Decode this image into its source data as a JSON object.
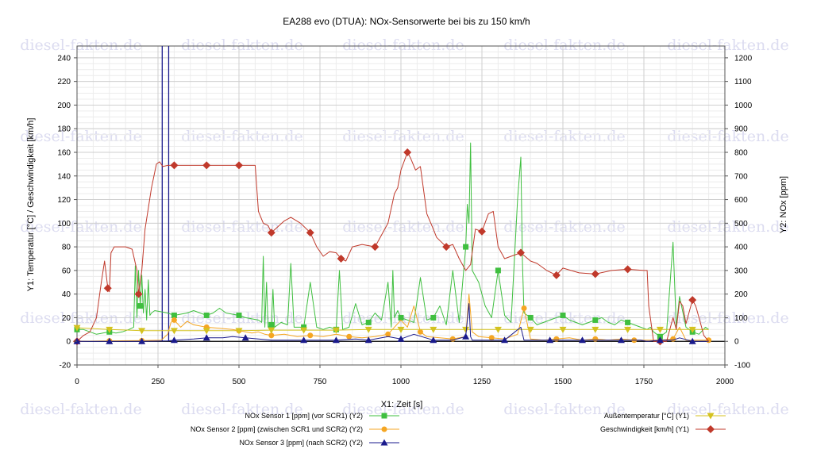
{
  "chart_data": {
    "type": "line",
    "title": "EA288 evo (DTUA): NOx-Sensorwerte bei bis zu 150 km/h",
    "xlabel": "X1: Zeit [s]",
    "ylabel_left": "Y1: Temperatur [°C] / Geschwindigkeit [km/h]",
    "ylabel_right": "Y2: NOx [ppm]",
    "xlim": [
      0,
      2000
    ],
    "ylim_left": [
      -20,
      250
    ],
    "ylim_right": [
      -100,
      1250
    ],
    "x_ticks": [
      "0",
      "250",
      "500",
      "750",
      "1000",
      "1250",
      "1500",
      "1750",
      "2000"
    ],
    "y_left_ticks": [
      "-20",
      "0",
      "20",
      "40",
      "60",
      "80",
      "100",
      "120",
      "140",
      "160",
      "180",
      "200",
      "220",
      "240"
    ],
    "y_right_ticks": [
      "-100",
      "0",
      "100",
      "200",
      "300",
      "400",
      "500",
      "600",
      "700",
      "800",
      "900",
      "1000",
      "1100",
      "1200"
    ],
    "grid": true,
    "legend_position": "bottom",
    "watermark": "diesel-fakten.de",
    "vertical_markers": [
      263,
      283
    ],
    "series": [
      {
        "name": "NOx Sensor 1 [ppm] (vor SCR1) (Y2)",
        "axis": "right",
        "color": "#3fbf3f",
        "marker": "square",
        "x": [
          0,
          20,
          40,
          60,
          80,
          100,
          120,
          140,
          160,
          175,
          180,
          185,
          190,
          195,
          200,
          205,
          210,
          215,
          220,
          225,
          230,
          240,
          260,
          280,
          300,
          320,
          340,
          360,
          380,
          400,
          420,
          440,
          460,
          480,
          500,
          520,
          540,
          560,
          570,
          575,
          580,
          585,
          590,
          600,
          605,
          610,
          630,
          650,
          660,
          670,
          700,
          720,
          740,
          760,
          780,
          800,
          810,
          820,
          840,
          860,
          880,
          900,
          920,
          940,
          960,
          970,
          975,
          980,
          990,
          1000,
          1020,
          1040,
          1060,
          1080,
          1100,
          1120,
          1140,
          1160,
          1180,
          1200,
          1205,
          1210,
          1215,
          1220,
          1240,
          1260,
          1280,
          1300,
          1320,
          1340,
          1360,
          1370,
          1375,
          1380,
          1400,
          1420,
          1440,
          1460,
          1480,
          1500,
          1520,
          1540,
          1560,
          1580,
          1600,
          1620,
          1640,
          1660,
          1680,
          1700,
          1720,
          1740,
          1760,
          1770,
          1780,
          1800,
          1820,
          1840,
          1850,
          1860,
          1880,
          1900,
          1920,
          1940,
          1950
        ],
        "y": [
          50,
          50,
          40,
          30,
          35,
          40,
          35,
          40,
          50,
          60,
          320,
          100,
          300,
          150,
          280,
          120,
          220,
          90,
          260,
          110,
          120,
          130,
          125,
          120,
          110,
          115,
          120,
          130,
          120,
          110,
          120,
          140,
          120,
          115,
          110,
          100,
          95,
          90,
          80,
          360,
          60,
          250,
          60,
          70,
          220,
          60,
          80,
          70,
          330,
          60,
          60,
          250,
          60,
          50,
          60,
          50,
          300,
          50,
          60,
          160,
          70,
          80,
          120,
          90,
          250,
          60,
          300,
          100,
          130,
          100,
          90,
          80,
          270,
          90,
          100,
          150,
          70,
          300,
          80,
          400,
          580,
          500,
          840,
          300,
          250,
          150,
          100,
          300,
          110,
          80,
          600,
          780,
          340,
          120,
          100,
          70,
          80,
          90,
          100,
          110,
          90,
          80,
          70,
          80,
          90,
          100,
          80,
          70,
          90,
          80,
          70,
          60,
          50,
          60,
          40,
          20,
          40,
          420,
          60,
          190,
          60,
          40,
          30,
          60,
          50
        ]
      },
      {
        "name": "NOx Sensor 2 [ppm] (zwischen SCR1 und SCR2) (Y2)",
        "axis": "right",
        "color": "#f5a623",
        "marker": "circle",
        "x": [
          0,
          100,
          200,
          260,
          280,
          290,
          300,
          320,
          340,
          360,
          380,
          400,
          440,
          480,
          500,
          520,
          540,
          560,
          580,
          600,
          640,
          680,
          720,
          760,
          800,
          840,
          880,
          920,
          960,
          1000,
          1020,
          1040,
          1060,
          1080,
          1120,
          1160,
          1200,
          1210,
          1220,
          1240,
          1280,
          1320,
          1360,
          1380,
          1400,
          1440,
          1480,
          1520,
          1560,
          1600,
          1640,
          1680,
          1720,
          1760,
          1800,
          1840,
          1860,
          1880,
          1920,
          1950
        ],
        "y": [
          0,
          2,
          3,
          5,
          30,
          80,
          90,
          60,
          85,
          70,
          65,
          60,
          55,
          50,
          45,
          40,
          35,
          40,
          30,
          25,
          30,
          20,
          25,
          20,
          30,
          20,
          15,
          20,
          30,
          90,
          60,
          150,
          40,
          20,
          15,
          10,
          20,
          200,
          40,
          20,
          15,
          10,
          30,
          140,
          10,
          5,
          10,
          15,
          5,
          10,
          5,
          10,
          5,
          5,
          5,
          10,
          60,
          5,
          5,
          5
        ]
      },
      {
        "name": "NOx Sensor 3 [ppm] (nach SCR2) (Y2)",
        "axis": "right",
        "color": "#1a1a8c",
        "marker": "triangle",
        "x": [
          0,
          100,
          200,
          280,
          300,
          360,
          400,
          450,
          480,
          520,
          560,
          600,
          700,
          800,
          860,
          900,
          960,
          1000,
          1040,
          1100,
          1160,
          1200,
          1210,
          1215,
          1220,
          1260,
          1320,
          1370,
          1380,
          1400,
          1460,
          1520,
          1560,
          1600,
          1680,
          1740,
          1760,
          1800,
          1840,
          1860,
          1900,
          1950
        ],
        "y": [
          0,
          0,
          0,
          2,
          5,
          10,
          15,
          15,
          20,
          15,
          10,
          5,
          5,
          5,
          10,
          5,
          20,
          10,
          30,
          5,
          5,
          20,
          160,
          20,
          5,
          5,
          5,
          60,
          5,
          5,
          5,
          5,
          5,
          5,
          5,
          5,
          0,
          5,
          5,
          15,
          0,
          0
        ]
      },
      {
        "name": "Außentemperatur [°C] (Y1)",
        "axis": "left",
        "color": "#d4c21f",
        "marker": "triangle-down",
        "x": [
          0,
          100,
          200,
          300,
          400,
          500,
          600,
          700,
          800,
          900,
          1000,
          1100,
          1200,
          1300,
          1400,
          1500,
          1600,
          1700,
          1800,
          1900,
          1950
        ],
        "y": [
          11.5,
          10,
          9,
          9,
          9,
          9,
          9.5,
          9.5,
          9.5,
          10,
          10,
          10,
          10,
          10,
          10,
          10,
          10,
          10,
          10,
          10,
          10
        ]
      },
      {
        "name": "Geschwindigkeit [km/h] (Y1)",
        "axis": "left",
        "color": "#c0392b",
        "marker": "diamond",
        "x": [
          0,
          20,
          40,
          60,
          75,
          85,
          95,
          100,
          105,
          115,
          130,
          150,
          170,
          185,
          190,
          200,
          210,
          230,
          245,
          255,
          265,
          280,
          300,
          400,
          500,
          550,
          560,
          575,
          590,
          600,
          620,
          640,
          660,
          690,
          720,
          740,
          760,
          780,
          800,
          815,
          830,
          850,
          880,
          920,
          960,
          980,
          990,
          1000,
          1020,
          1030,
          1045,
          1060,
          1080,
          1100,
          1110,
          1140,
          1160,
          1180,
          1200,
          1215,
          1230,
          1250,
          1270,
          1285,
          1300,
          1320,
          1340,
          1370,
          1400,
          1420,
          1450,
          1480,
          1500,
          1550,
          1600,
          1650,
          1700,
          1750,
          1760,
          1765,
          1780,
          1800,
          1820,
          1840,
          1850,
          1860,
          1870,
          1880,
          1890,
          1900,
          1910,
          1920,
          1935,
          1950
        ],
        "y": [
          0,
          5,
          8,
          20,
          50,
          68,
          45,
          42,
          75,
          80,
          80,
          80,
          78,
          60,
          40,
          60,
          95,
          130,
          150,
          152,
          148,
          149,
          149,
          149,
          149,
          149,
          110,
          100,
          98,
          92,
          97,
          102,
          105,
          100,
          92,
          80,
          72,
          76,
          75,
          70,
          68,
          80,
          82,
          80,
          100,
          125,
          130,
          145,
          160,
          155,
          145,
          148,
          108,
          95,
          88,
          80,
          82,
          70,
          60,
          65,
          95,
          93,
          108,
          110,
          80,
          70,
          72,
          75,
          68,
          66,
          60,
          56,
          62,
          58,
          57,
          60,
          61,
          60,
          60,
          30,
          0,
          0,
          0,
          20,
          10,
          34,
          30,
          15,
          25,
          35,
          30,
          20,
          5,
          0
        ]
      }
    ]
  }
}
